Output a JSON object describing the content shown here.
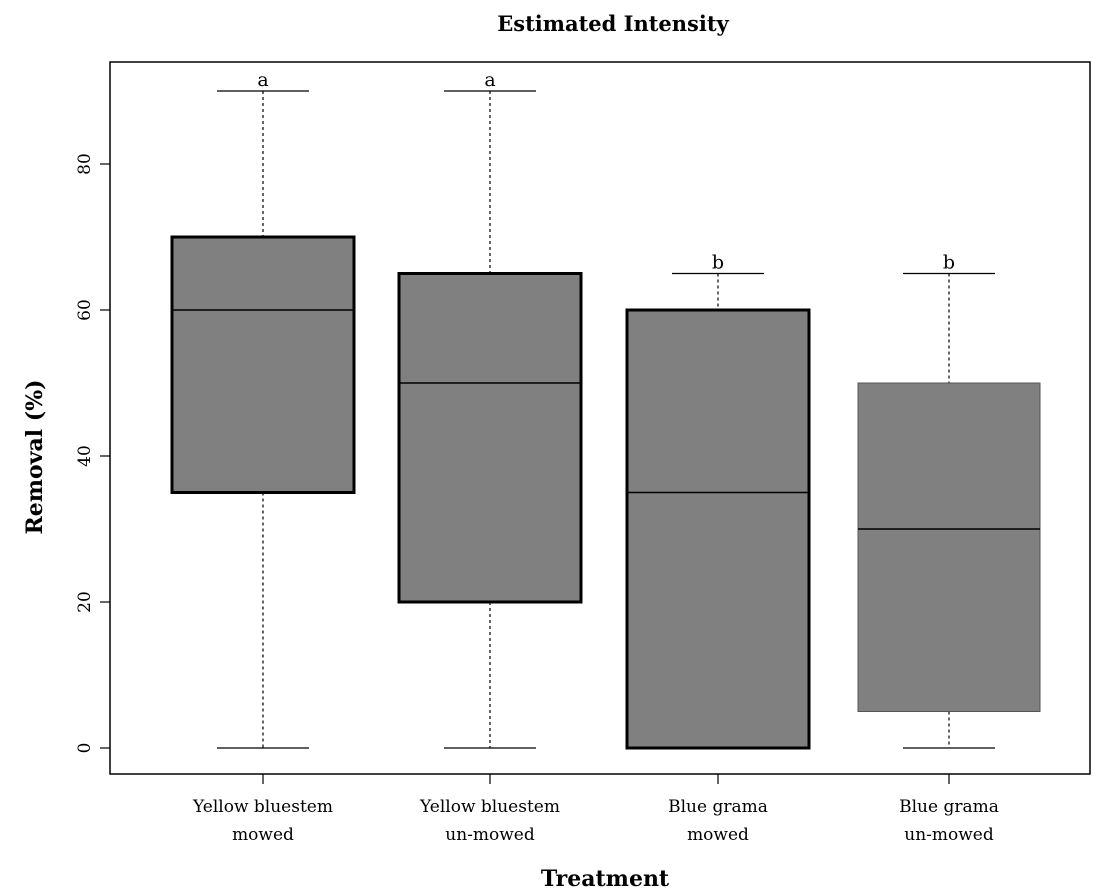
{
  "chart_data": {
    "type": "boxplot",
    "title": "Estimated Intensity",
    "xlabel": "Treatment",
    "ylabel": "Removal  (%)",
    "ylim": [
      -4,
      94
    ],
    "yticks": [
      0,
      20,
      40,
      60,
      80
    ],
    "grid": false,
    "box_color": "#808080",
    "categories": [
      {
        "line1": "Yellow bluestem",
        "line2": "mowed"
      },
      {
        "line1": "Yellow bluestem",
        "line2": "un-mowed"
      },
      {
        "line1": "Blue grama",
        "line2": "mowed"
      },
      {
        "line1": "Blue grama",
        "line2": "un-mowed"
      }
    ],
    "boxes": [
      {
        "min": 0,
        "q1": 35,
        "median": 60,
        "q3": 70,
        "max": 90,
        "group": "a",
        "bold_border": true
      },
      {
        "min": 0,
        "q1": 20,
        "median": 50,
        "q3": 65,
        "max": 90,
        "group": "a",
        "bold_border": true
      },
      {
        "min": 0,
        "q1": 0,
        "median": 35,
        "q3": 60,
        "max": 65,
        "group": "b",
        "bold_border": true
      },
      {
        "min": 0,
        "q1": 5,
        "median": 30,
        "q3": 50,
        "max": 65,
        "group": "b",
        "bold_border": false
      }
    ]
  }
}
